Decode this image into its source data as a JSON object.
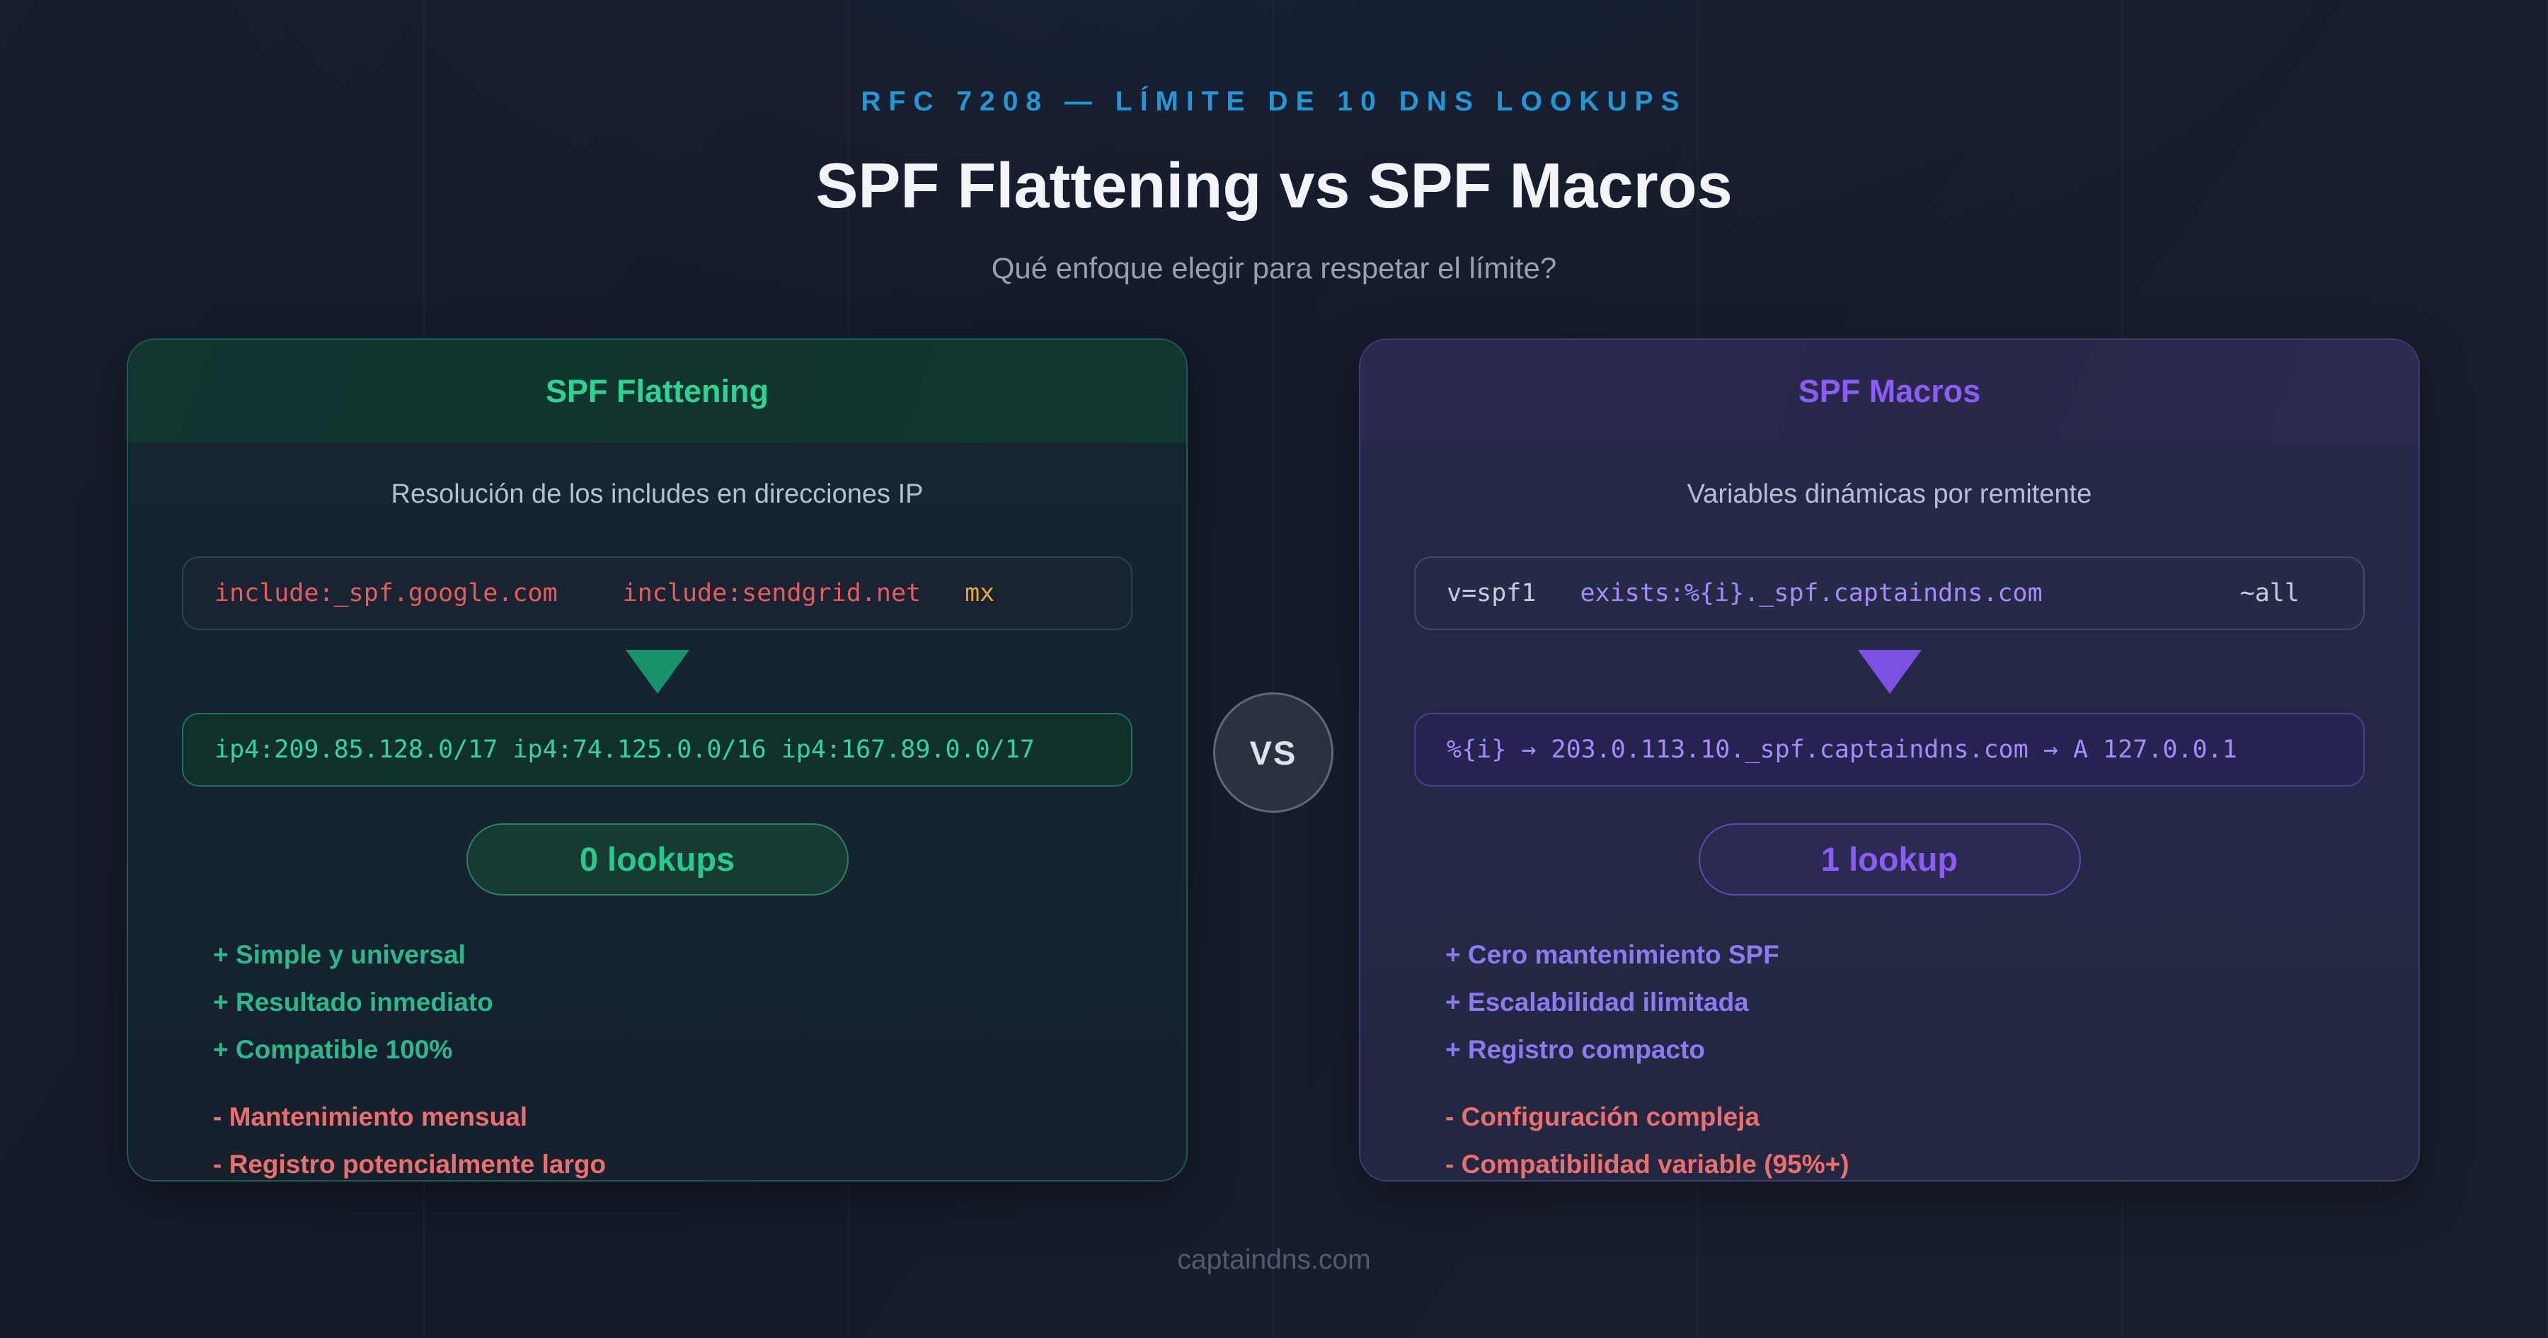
{
  "header": {
    "eyebrow": "RFC 7208 — LÍMITE DE 10 DNS LOOKUPS",
    "title": "SPF Flattening vs SPF Macros",
    "subtitle": "Qué enfoque elegir para respetar el límite?"
  },
  "left_card": {
    "title": "SPF Flattening",
    "description": "Resolución de los includes en direcciones IP",
    "record_tokens": [
      {
        "text": "include:_spf.google.com",
        "color": "#e65c5c"
      },
      {
        "text": "include:sendgrid.net",
        "color": "#e65c5c"
      },
      {
        "text": "mx",
        "color": "#e8a43e"
      }
    ],
    "resolved": "ip4:209.85.128.0/17 ip4:74.125.0.0/16 ip4:167.89.0.0/17",
    "badge": "0 lookups",
    "pros": [
      "+ Simple y universal",
      "+ Resultado inmediato",
      "+ Compatible 100%"
    ],
    "cons": [
      "- Mantenimiento mensual",
      "- Registro potencialmente largo"
    ]
  },
  "right_card": {
    "title": "SPF Macros",
    "description": "Variables dinámicas por remitente",
    "record_tokens": [
      {
        "text": "v=spf1",
        "color": "#c6ccda"
      },
      {
        "text": "exists:%{i}._spf.captaindns.com",
        "color": "#a78bfa"
      },
      {
        "text": "~all",
        "color": "#c6ccda"
      }
    ],
    "resolved": "%{i} → 203.0.113.10._spf.captaindns.com → A 127.0.0.1",
    "badge": "1 lookup",
    "pros": [
      "+ Cero mantenimiento SPF",
      "+ Escalabilidad ilimitada",
      "+ Registro compacto"
    ],
    "cons": [
      "- Configuración compleja",
      "- Compatibilidad variable (95%+)"
    ]
  },
  "vs_label": "VS",
  "footer": {
    "site": "captaindns.com"
  },
  "colors": {
    "background": "#141a29",
    "eyebrow_blue": "#2397d6",
    "green_accent": "#2ed292",
    "purple_accent": "#8b5cf6",
    "code_red": "#e65c5c",
    "code_amber": "#e8a43e",
    "code_green": "#2fd6a3",
    "code_purple": "#a78bfa",
    "con_red": "#ec6e6e"
  }
}
